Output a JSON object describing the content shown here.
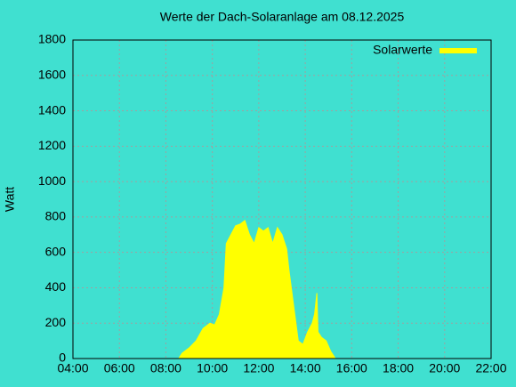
{
  "chart_data": {
    "type": "area",
    "title": "Werte der Dach-Solaranlage am 08.12.2025",
    "ylabel": "Watt",
    "series": [
      {
        "name": "Solarwerte",
        "color": "#ffff00",
        "x": [
          8.55,
          8.7,
          9.0,
          9.3,
          9.6,
          9.9,
          10.1,
          10.3,
          10.5,
          10.6,
          10.8,
          11.0,
          11.2,
          11.4,
          11.6,
          11.8,
          12.0,
          12.2,
          12.4,
          12.6,
          12.8,
          13.0,
          13.2,
          13.3,
          13.5,
          13.7,
          13.9,
          14.1,
          14.3,
          14.4,
          14.5,
          14.55,
          14.7,
          14.9,
          15.1,
          15.3
        ],
        "values": [
          0,
          30,
          60,
          100,
          170,
          200,
          190,
          250,
          400,
          650,
          700,
          750,
          760,
          780,
          700,
          650,
          740,
          720,
          740,
          650,
          740,
          700,
          620,
          500,
          300,
          100,
          80,
          150,
          200,
          250,
          370,
          150,
          120,
          100,
          40,
          0
        ]
      }
    ],
    "xlim": [
      4,
      22
    ],
    "xticks": [
      {
        "value": 4,
        "label": "04:00"
      },
      {
        "value": 6,
        "label": "06:00"
      },
      {
        "value": 8,
        "label": "08:00"
      },
      {
        "value": 10,
        "label": "10:00"
      },
      {
        "value": 12,
        "label": "12:00"
      },
      {
        "value": 14,
        "label": "14:00"
      },
      {
        "value": 16,
        "label": "16:00"
      },
      {
        "value": 18,
        "label": "18:00"
      },
      {
        "value": 20,
        "label": "20:00"
      },
      {
        "value": 22,
        "label": "22:00"
      }
    ],
    "ylim": [
      0,
      1800
    ],
    "yticks": [
      0,
      200,
      400,
      600,
      800,
      1000,
      1200,
      1400,
      1600,
      1800
    ],
    "grid": true,
    "legend": "top-right"
  }
}
